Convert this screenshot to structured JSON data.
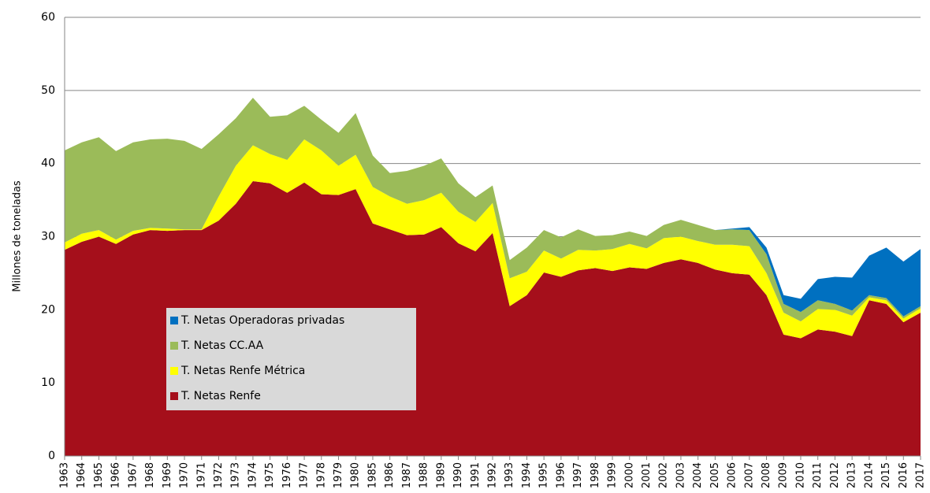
{
  "chart_data": {
    "type": "stacked_area",
    "y_label": "Millones de toneladas",
    "categories": [
      "1963",
      "1964",
      "1965",
      "1966",
      "1967",
      "1968",
      "1969",
      "1970",
      "1971",
      "1972",
      "1973",
      "1974",
      "1975",
      "1976",
      "1977",
      "1978",
      "1979",
      "1980",
      "1985",
      "1986",
      "1987",
      "1988",
      "1989",
      "1990",
      "1991",
      "1992",
      "1993",
      "1994",
      "1995",
      "1996",
      "1997",
      "1998",
      "1999",
      "2000",
      "2001",
      "2002",
      "2003",
      "2004",
      "2005",
      "2006",
      "2007",
      "2008",
      "2009",
      "2010",
      "2011",
      "2012",
      "2013",
      "2014",
      "2015",
      "2016",
      "2017"
    ],
    "series": [
      {
        "name": "T. Netas Renfe",
        "color": "#a50f1b",
        "values": [
          28.2,
          29.3,
          30.0,
          29.0,
          30.3,
          30.9,
          30.8,
          30.9,
          30.9,
          32.2,
          34.5,
          37.6,
          37.3,
          36.0,
          37.4,
          35.8,
          35.7,
          36.5,
          31.8,
          31.0,
          30.2,
          30.3,
          31.3,
          29.1,
          28.0,
          30.5,
          20.5,
          22.0,
          25.1,
          24.5,
          25.4,
          25.7,
          25.3,
          25.8,
          25.6,
          26.4,
          26.9,
          26.4,
          25.5,
          25.0,
          24.8,
          22.0,
          16.6,
          16.1,
          17.3,
          17.0,
          16.4,
          21.3,
          20.8,
          18.3,
          19.6
        ]
      },
      {
        "name": "T. Netas Renfe Métrica",
        "color": "#ffff00",
        "values": [
          1.0,
          1.1,
          0.9,
          0.6,
          0.5,
          0.3,
          0.3,
          0.1,
          0.1,
          3.3,
          5.2,
          4.9,
          4.0,
          4.5,
          5.9,
          6.0,
          4.0,
          4.7,
          5.0,
          4.5,
          4.3,
          4.7,
          4.7,
          4.3,
          4.0,
          4.1,
          3.8,
          3.2,
          3.0,
          2.5,
          2.8,
          2.4,
          3.0,
          3.2,
          2.8,
          3.4,
          3.1,
          3.0,
          3.4,
          3.9,
          3.9,
          3.0,
          3.0,
          2.3,
          2.8,
          3.0,
          2.8,
          0.4,
          0.5,
          0.5,
          0.6
        ]
      },
      {
        "name": "T. Netas CC.AA",
        "color": "#9bbb59",
        "values": [
          12.6,
          12.5,
          12.7,
          12.1,
          12.1,
          12.1,
          12.3,
          12.1,
          11.0,
          8.5,
          6.5,
          6.5,
          5.1,
          6.1,
          4.6,
          4.2,
          4.5,
          5.7,
          4.3,
          3.2,
          4.5,
          4.7,
          4.7,
          3.9,
          3.4,
          2.4,
          2.5,
          3.3,
          2.8,
          2.9,
          2.8,
          2.0,
          1.9,
          1.7,
          1.7,
          1.8,
          2.3,
          2.2,
          2.0,
          2.1,
          2.2,
          2.6,
          1.2,
          1.3,
          1.2,
          0.8,
          0.7,
          0.3,
          0.3,
          0.3,
          0.3
        ]
      },
      {
        "name": "T. Netas Operadoras privadas",
        "color": "#0070c0",
        "values": [
          0,
          0,
          0,
          0,
          0,
          0,
          0,
          0,
          0,
          0,
          0,
          0,
          0,
          0,
          0,
          0,
          0,
          0,
          0,
          0,
          0,
          0,
          0,
          0,
          0,
          0,
          0,
          0,
          0,
          0,
          0,
          0,
          0,
          0,
          0,
          0,
          0,
          0,
          0,
          0.1,
          0.4,
          0.9,
          1.2,
          1.8,
          2.9,
          3.7,
          4.5,
          5.4,
          6.9,
          7.5,
          7.8
        ]
      }
    ],
    "ylim": [
      0,
      60
    ],
    "yticks": [
      0,
      10,
      20,
      30,
      40,
      50,
      60
    ],
    "grid": true
  }
}
